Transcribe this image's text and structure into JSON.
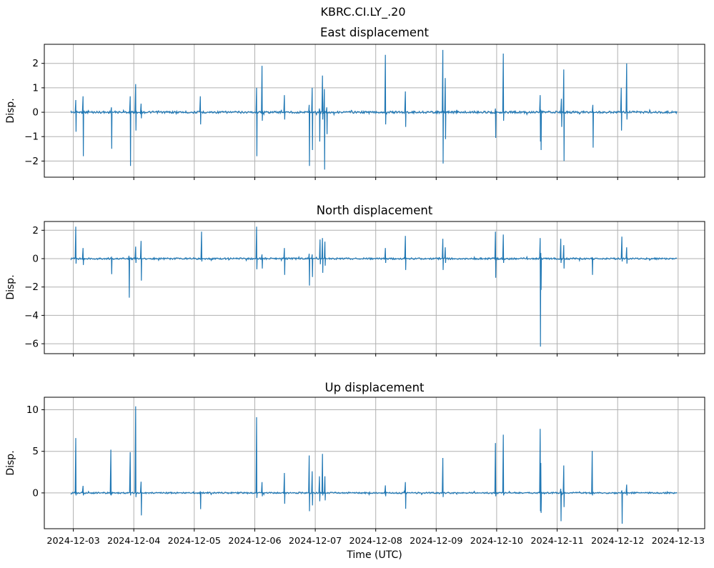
{
  "chart_data": {
    "type": "line",
    "figure_title": "KBRC.CI.LY_.20",
    "xlabel": "Time (UTC)",
    "line_color": "#1f77b4",
    "grid_color": "#b0b0b0",
    "grid": true,
    "x_axis": {
      "tick_labels": [
        "2024-12-03",
        "2024-12-04",
        "2024-12-05",
        "2024-12-06",
        "2024-12-07",
        "2024-12-08",
        "2024-12-09",
        "2024-12-10",
        "2024-12-11",
        "2024-12-12",
        "2024-12-13"
      ],
      "tick_day_offsets": [
        0,
        1,
        2,
        3,
        4,
        5,
        6,
        7,
        8,
        9,
        10
      ],
      "xlim_days": [
        -0.48,
        10.44
      ],
      "data_span_days": [
        -0.04,
        9.98
      ]
    },
    "subplots": [
      {
        "title": "East displacement",
        "ylabel": "Disp.",
        "yticks": [
          -2,
          -1,
          0,
          1,
          2
        ],
        "ylim": [
          -2.66,
          2.78
        ],
        "baseline": 0,
        "noise_band": 0.09,
        "spikes": [
          [
            0.04,
            0.5,
            -0.8
          ],
          [
            0.16,
            0.65,
            -1.8
          ],
          [
            0.63,
            0.2,
            -1.5
          ],
          [
            0.94,
            0.65,
            -2.2
          ],
          [
            1.03,
            1.15,
            -0.75
          ],
          [
            1.12,
            0.35,
            -0.25
          ],
          [
            2.1,
            0.65,
            -0.5
          ],
          [
            3.03,
            1.0,
            -1.8
          ],
          [
            3.12,
            1.9,
            -0.35
          ],
          [
            3.49,
            0.7,
            -0.3
          ],
          [
            3.9,
            0.3,
            -2.2
          ],
          [
            3.95,
            1.0,
            -1.55
          ],
          [
            4.07,
            0.15,
            -1.2
          ],
          [
            4.12,
            1.5,
            -0.3
          ],
          [
            4.15,
            0.95,
            -2.35
          ],
          [
            4.19,
            0.2,
            -0.9
          ],
          [
            5.16,
            2.35,
            -0.5
          ],
          [
            5.49,
            0.85,
            -0.6
          ],
          [
            6.11,
            2.55,
            -2.1
          ],
          [
            6.15,
            1.4,
            -1.1
          ],
          [
            6.98,
            0.15,
            -1.05
          ],
          [
            7.11,
            2.4,
            -0.35
          ],
          [
            7.72,
            0.7,
            -1.2
          ],
          [
            7.73,
            0.1,
            -1.55
          ],
          [
            8.07,
            0.55,
            -0.6
          ],
          [
            8.11,
            1.75,
            -2.0
          ],
          [
            8.59,
            0.3,
            -1.45
          ],
          [
            9.06,
            1.0,
            -0.75
          ],
          [
            9.15,
            2.0,
            -0.3
          ]
        ]
      },
      {
        "title": "North displacement",
        "ylabel": "Disp.",
        "yticks": [
          -6,
          -4,
          -2,
          0,
          2
        ],
        "ylim": [
          -6.7,
          2.62
        ],
        "baseline": 0,
        "noise_band": 0.12,
        "spikes": [
          [
            0.04,
            2.25,
            -0.35
          ],
          [
            0.16,
            0.75,
            -0.45
          ],
          [
            0.63,
            0.1,
            -1.1
          ],
          [
            0.92,
            0.2,
            -2.75
          ],
          [
            1.03,
            0.85,
            -0.3
          ],
          [
            1.12,
            1.25,
            -1.55
          ],
          [
            2.12,
            1.9,
            -0.2
          ],
          [
            3.03,
            2.25,
            -0.75
          ],
          [
            3.12,
            0.3,
            -0.7
          ],
          [
            3.49,
            0.75,
            -1.15
          ],
          [
            3.9,
            0.35,
            -1.9
          ],
          [
            3.95,
            0.3,
            -1.3
          ],
          [
            4.08,
            1.35,
            -0.4
          ],
          [
            4.12,
            1.45,
            -1.0
          ],
          [
            4.16,
            1.2,
            -0.5
          ],
          [
            5.16,
            0.75,
            -0.3
          ],
          [
            5.49,
            1.6,
            -0.8
          ],
          [
            6.11,
            1.4,
            -0.8
          ],
          [
            6.15,
            0.8,
            -0.3
          ],
          [
            6.98,
            1.9,
            -1.35
          ],
          [
            7.11,
            1.7,
            -0.3
          ],
          [
            7.72,
            1.45,
            -6.2
          ],
          [
            7.73,
            0.4,
            -2.2
          ],
          [
            8.06,
            1.4,
            -0.3
          ],
          [
            8.11,
            0.95,
            -0.7
          ],
          [
            8.58,
            0.1,
            -1.15
          ],
          [
            9.07,
            1.55,
            -0.2
          ],
          [
            9.15,
            0.8,
            -0.35
          ]
        ]
      },
      {
        "title": "Up displacement",
        "ylabel": "Disp.",
        "yticks": [
          0,
          5,
          10
        ],
        "ylim": [
          -4.3,
          11.5
        ],
        "baseline": 0,
        "noise_band": 0.18,
        "spikes": [
          [
            0.04,
            6.6,
            -0.3
          ],
          [
            0.16,
            0.85,
            -0.3
          ],
          [
            0.62,
            5.2,
            -0.3
          ],
          [
            0.94,
            4.9,
            -0.3
          ],
          [
            1.03,
            10.4,
            -0.5
          ],
          [
            1.12,
            1.35,
            -2.7
          ],
          [
            2.1,
            0.2,
            -1.95
          ],
          [
            3.03,
            9.1,
            -0.6
          ],
          [
            3.12,
            1.3,
            -0.4
          ],
          [
            3.49,
            2.4,
            -1.3
          ],
          [
            3.9,
            4.5,
            -2.2
          ],
          [
            3.95,
            2.6,
            -1.5
          ],
          [
            4.07,
            2.0,
            -1.0
          ],
          [
            4.12,
            4.7,
            -0.3
          ],
          [
            4.16,
            2.0,
            -0.9
          ],
          [
            5.16,
            0.9,
            -0.4
          ],
          [
            5.49,
            1.3,
            -1.9
          ],
          [
            6.11,
            4.2,
            -0.5
          ],
          [
            6.98,
            6.0,
            -0.4
          ],
          [
            7.11,
            7.0,
            -0.3
          ],
          [
            7.72,
            7.7,
            -2.2
          ],
          [
            7.73,
            3.6,
            -2.4
          ],
          [
            8.06,
            0.5,
            -3.4
          ],
          [
            8.11,
            3.3,
            -1.7
          ],
          [
            8.58,
            5.05,
            -0.3
          ],
          [
            9.07,
            0.3,
            -3.7
          ],
          [
            9.15,
            1.0,
            -0.3
          ]
        ]
      }
    ]
  }
}
